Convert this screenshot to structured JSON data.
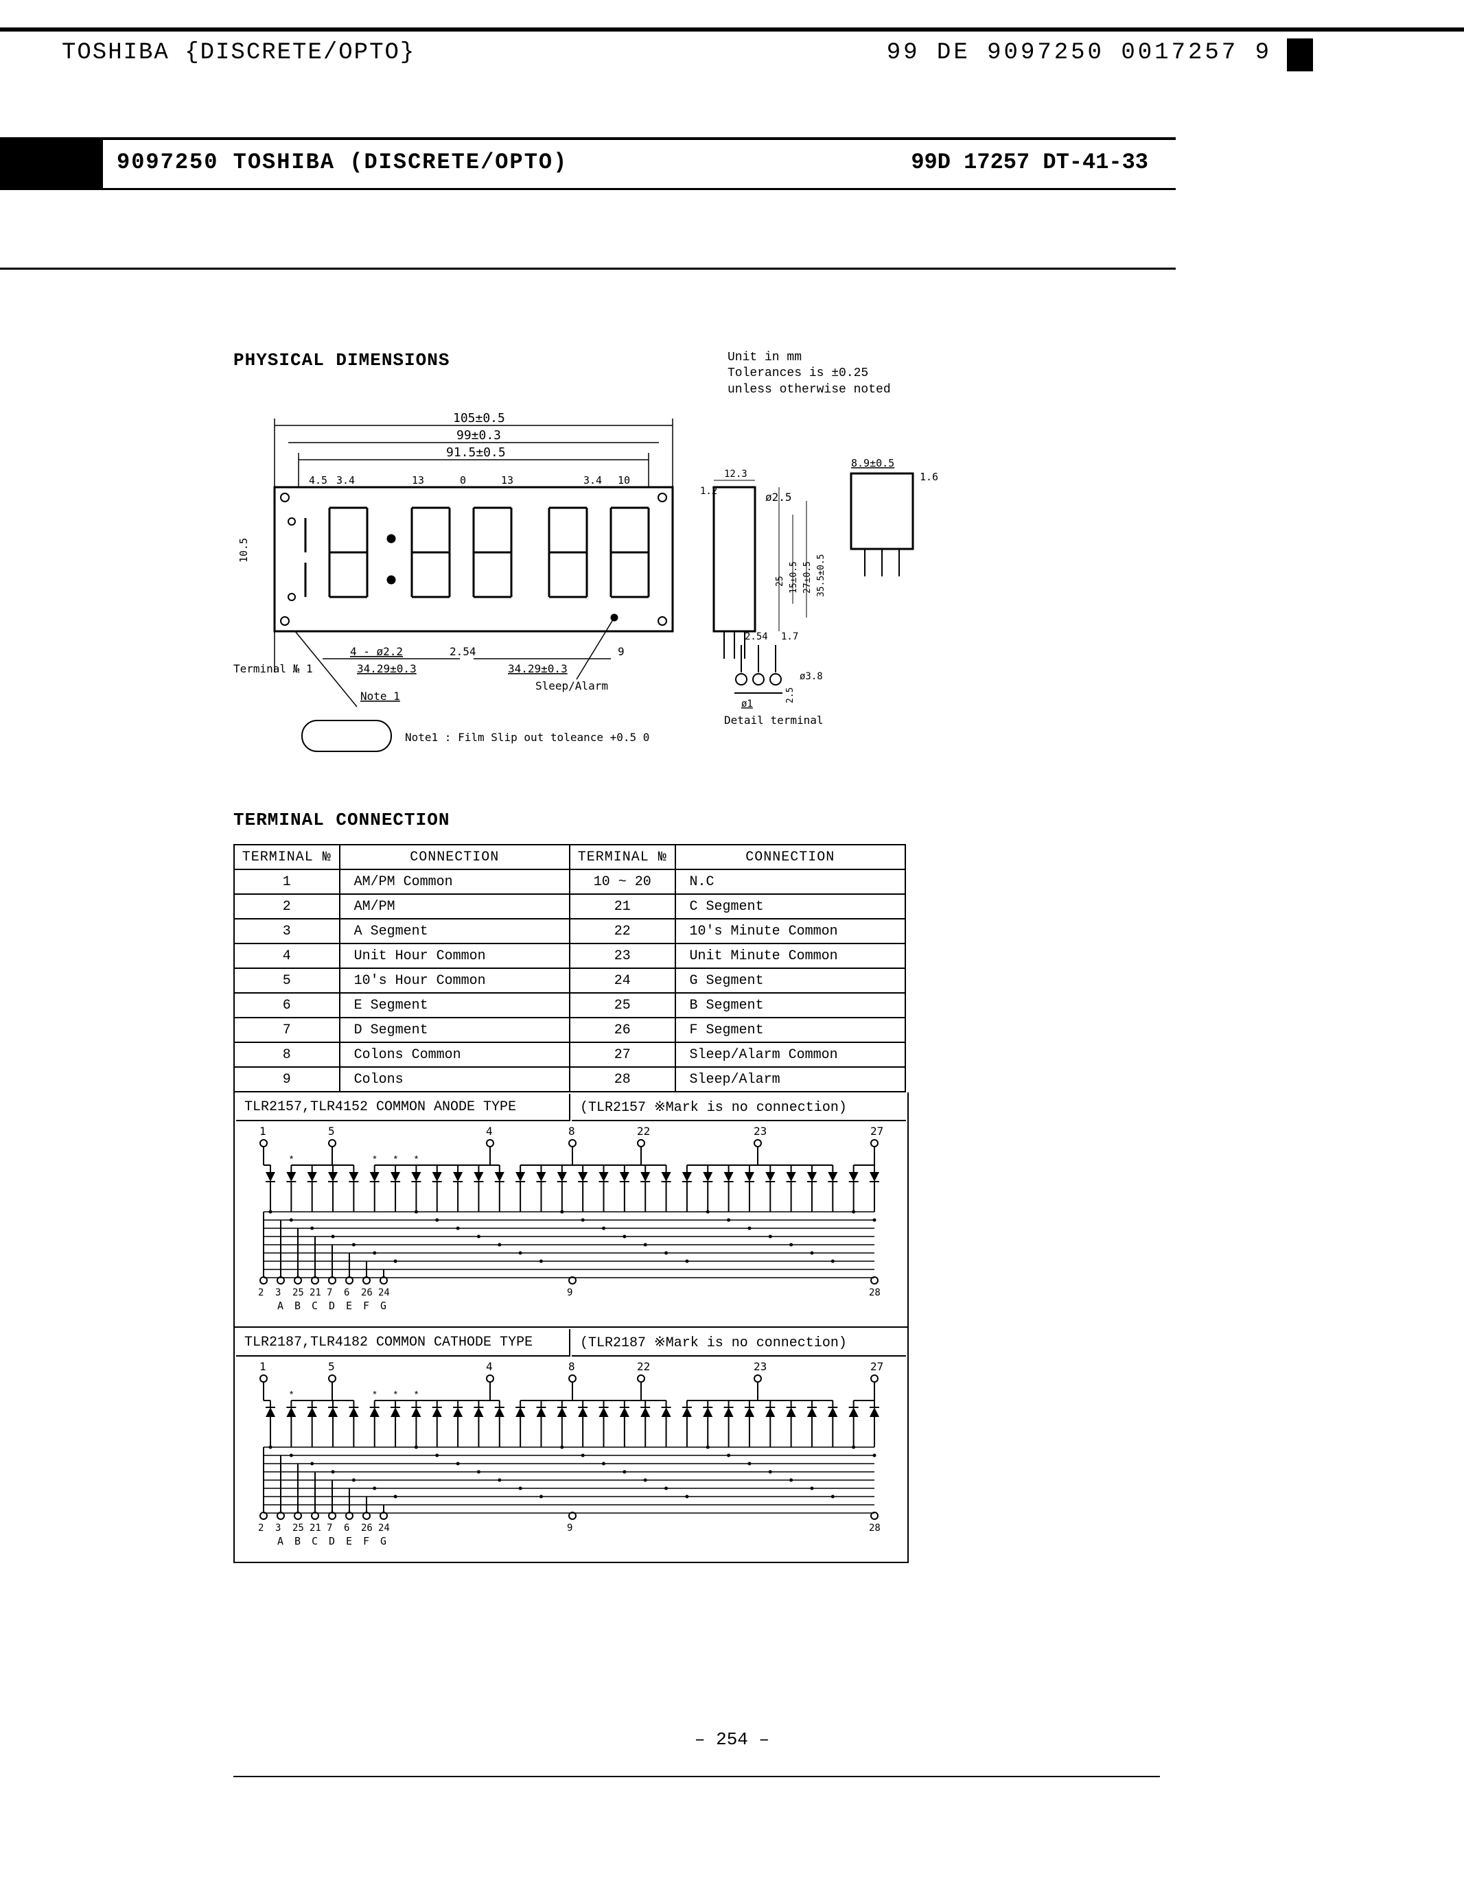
{
  "topbar": {
    "left": "TOSHIBA {DISCRETE/OPTO}",
    "right": "99  DE   9097250 0017257 9"
  },
  "midbar": {
    "left": "9097250 TOSHIBA (DISCRETE/OPTO)",
    "right": "99D  17257    DT-41-33"
  },
  "physical": {
    "title": "PHYSICAL DIMENSIONS",
    "unit": "Unit in mm",
    "tol": "Tolerances is ±0.25\nunless otherwise noted",
    "dims": {
      "w_outer": "105±0.5",
      "w_99": "99±0.3",
      "w_915": "91.5±0.5",
      "d45": "4.5",
      "d34": "3.4",
      "d13a": "13",
      "d0": "0",
      "d13b": "13",
      "d34b": "3.4",
      "d10": "10",
      "d12_3": "12.3",
      "d12": "1.2",
      "phi25": "ø2.5",
      "a8": "8.9±0.5",
      "l16": "1.6",
      "h35": "35.5±0.5",
      "h27": "27±0.5",
      "h15": "15±0.5",
      "h10_5": "10.5",
      "h25": "25",
      "d4phi22": "4 - ø2.2",
      "d254": "2.54",
      "d3429a": "34.29±0.3",
      "d3429b": "34.29±0.3",
      "term1": "Terminal № 1",
      "note1": "Note 1",
      "note1text": "Note1 : Film Slip out toleance +0.5 0",
      "sleep": "Sleep/Alarm",
      "nine": "9",
      "p254": "2.54",
      "p17": "1.7",
      "phi38": "ø3.8",
      "phi1": "ø1",
      "h25b": "2.5",
      "detail": "Detail terminal"
    }
  },
  "terminal": {
    "title": "TERMINAL CONNECTION",
    "headers": [
      "TERMINAL №",
      "CONNECTION",
      "TERMINAL №",
      "CONNECTION"
    ],
    "rows": [
      [
        "1",
        "AM/PM Common",
        "10 ~ 20",
        "N.C"
      ],
      [
        "2",
        "AM/PM",
        "21",
        "C Segment"
      ],
      [
        "3",
        "A Segment",
        "22",
        "10's Minute Common"
      ],
      [
        "4",
        "Unit Hour Common",
        "23",
        "Unit Minute Common"
      ],
      [
        "5",
        "10's Hour Common",
        "24",
        "G Segment"
      ],
      [
        "6",
        "E Segment",
        "25",
        "B Segment"
      ],
      [
        "7",
        "D Segment",
        "26",
        "F Segment"
      ],
      [
        "8",
        "Colons Common",
        "27",
        "Sleep/Alarm Common"
      ],
      [
        "9",
        "Colons",
        "28",
        "Sleep/Alarm"
      ]
    ]
  },
  "circuit_anode": {
    "title": "TLR2157,TLR4152 COMMON ANODE TYPE",
    "note": "(TLR2157 ※Mark is no connection)",
    "top_pins": [
      "1",
      "5",
      "4",
      "8",
      "22",
      "23",
      "27"
    ],
    "bot_pins": [
      "2",
      "3",
      "25",
      "21",
      "7",
      "6",
      "26",
      "24",
      "9",
      "28"
    ],
    "bot_letters": [
      "A",
      "B",
      "C",
      "D",
      "E",
      "F",
      "G"
    ]
  },
  "circuit_cathode": {
    "title": "TLR2187,TLR4182 COMMON CATHODE TYPE",
    "note": "(TLR2187 ※Mark is no connection)",
    "top_pins": [
      "1",
      "5",
      "4",
      "8",
      "22",
      "23",
      "27"
    ],
    "bot_pins": [
      "2",
      "3",
      "25",
      "21",
      "7",
      "6",
      "26",
      "24",
      "9",
      "28"
    ],
    "bot_letters": [
      "A",
      "B",
      "C",
      "D",
      "E",
      "F",
      "G"
    ]
  },
  "page_number": "– 254 –"
}
